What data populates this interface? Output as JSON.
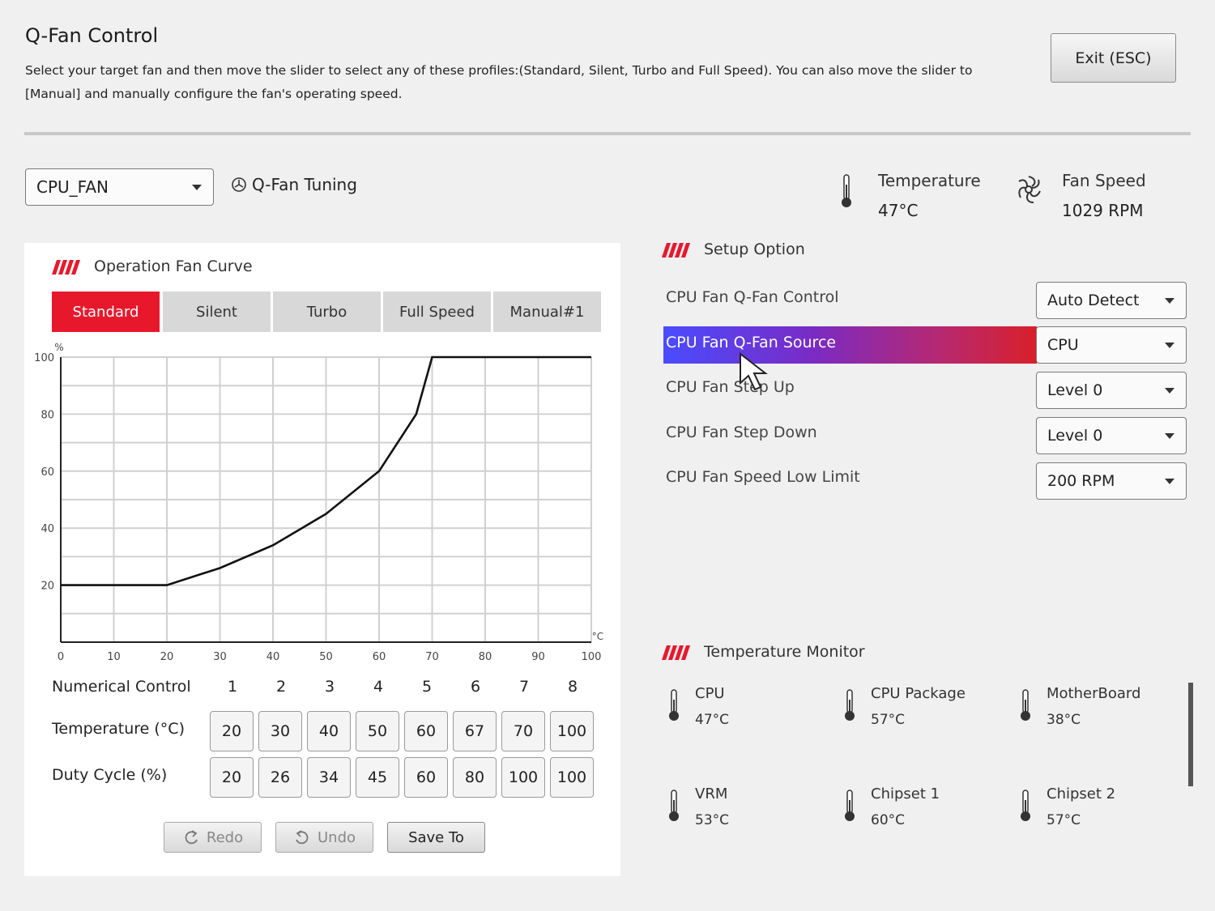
{
  "header": {
    "title": "Q-Fan Control",
    "description": "Select your target fan and then move the slider to select any of these profiles:(Standard, Silent, Turbo and Full Speed). You can also move the slider to [Manual] and manually configure the fan's operating speed.",
    "exit_label": "Exit (ESC)"
  },
  "fan_select": {
    "value": "CPU_FAN"
  },
  "tuning_label": "Q-Fan Tuning",
  "status": {
    "temperature_label": "Temperature",
    "temperature_value": "47°C",
    "fan_speed_label": "Fan Speed",
    "fan_speed_value": "1029 RPM"
  },
  "curve_panel": {
    "title": "Operation Fan Curve",
    "tabs": [
      "Standard",
      "Silent",
      "Turbo",
      "Full Speed",
      "Manual#1"
    ],
    "active_tab": "Standard",
    "accent_color": "#e8182c"
  },
  "chart_data": {
    "type": "line",
    "x_unit": "°C",
    "y_unit": "%",
    "xlim": [
      0,
      100
    ],
    "ylim": [
      0,
      100
    ],
    "x_ticks": [
      0,
      10,
      20,
      30,
      40,
      50,
      60,
      70,
      80,
      90,
      100
    ],
    "y_ticks": [
      20,
      40,
      60,
      80,
      100
    ],
    "grid": true,
    "points": [
      [
        0,
        20
      ],
      [
        20,
        20
      ],
      [
        30,
        26
      ],
      [
        40,
        34
      ],
      [
        50,
        45
      ],
      [
        60,
        60
      ],
      [
        67,
        80
      ],
      [
        70,
        100
      ],
      [
        100,
        100
      ]
    ]
  },
  "numerical": {
    "label": "Numerical Control",
    "indices": [
      "1",
      "2",
      "3",
      "4",
      "5",
      "6",
      "7",
      "8"
    ],
    "temp_label": "Temperature (°C)",
    "temps": [
      "20",
      "30",
      "40",
      "50",
      "60",
      "67",
      "70",
      "100"
    ],
    "duty_label": "Duty Cycle (%)",
    "duties": [
      "20",
      "26",
      "34",
      "45",
      "60",
      "80",
      "100",
      "100"
    ]
  },
  "actions": {
    "redo": "Redo",
    "undo": "Undo",
    "save": "Save To"
  },
  "setup": {
    "title": "Setup Option",
    "rows": [
      {
        "label": "CPU Fan Q-Fan Control",
        "value": "Auto Detect"
      },
      {
        "label": "CPU Fan Q-Fan Source",
        "value": "CPU"
      },
      {
        "label": "CPU Fan Step Up",
        "value": "Level 0"
      },
      {
        "label": "CPU Fan Step Down",
        "value": "Level 0"
      },
      {
        "label": "CPU Fan Speed Low Limit",
        "value": "200 RPM"
      }
    ]
  },
  "monitor": {
    "title": "Temperature Monitor",
    "items": [
      {
        "name": "CPU",
        "value": "47°C"
      },
      {
        "name": "CPU Package",
        "value": "57°C"
      },
      {
        "name": "MotherBoard",
        "value": "38°C"
      },
      {
        "name": "VRM",
        "value": "53°C"
      },
      {
        "name": "Chipset 1",
        "value": "60°C"
      },
      {
        "name": "Chipset 2",
        "value": "57°C"
      }
    ]
  }
}
